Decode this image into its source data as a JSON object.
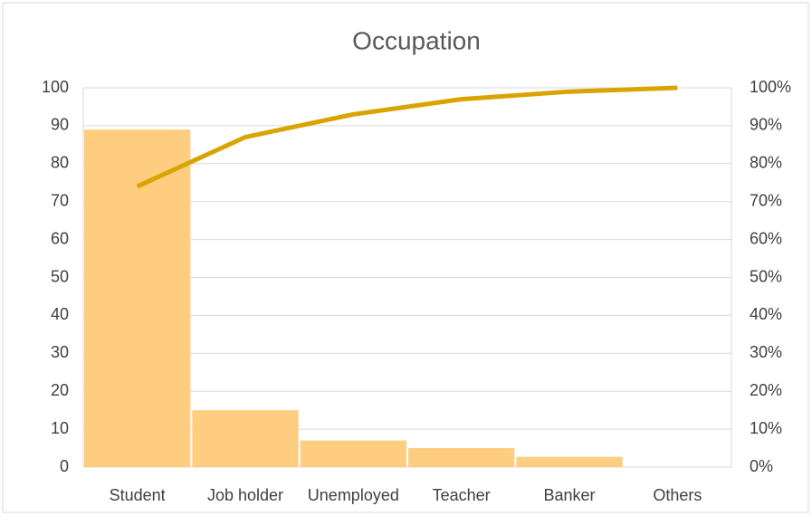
{
  "chart_data": {
    "type": "pareto",
    "title": "Occupation",
    "categories": [
      "Student",
      "Job holder",
      "Unemployed",
      "Teacher",
      "Banker",
      "Others"
    ],
    "series": [
      {
        "type": "bar",
        "color": "#fecd7f",
        "values": [
          89,
          15,
          7,
          5,
          2.7,
          0
        ]
      },
      {
        "type": "line",
        "axis": "y2",
        "color": "#d9a400",
        "values": [
          74,
          87,
          93,
          97,
          99,
          100
        ]
      }
    ],
    "ylim": [
      0,
      100
    ],
    "yticks": [
      0,
      10,
      20,
      30,
      40,
      50,
      60,
      70,
      80,
      90,
      100
    ],
    "y2lim": [
      0,
      100
    ],
    "y2ticks": [
      {
        "value": 0,
        "label": "0%"
      },
      {
        "value": 10,
        "label": "10%"
      },
      {
        "value": 20,
        "label": "20%"
      },
      {
        "value": 30,
        "label": "30%"
      },
      {
        "value": 40,
        "label": "40%"
      },
      {
        "value": 50,
        "label": "50%"
      },
      {
        "value": 60,
        "label": "60%"
      },
      {
        "value": 70,
        "label": "70%"
      },
      {
        "value": 80,
        "label": "80%"
      },
      {
        "value": 90,
        "label": "90%"
      },
      {
        "value": 100,
        "label": "100%"
      }
    ],
    "grid": true
  }
}
